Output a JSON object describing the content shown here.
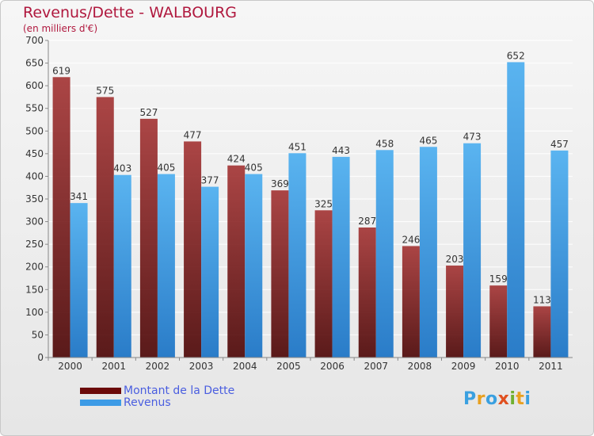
{
  "title": "Revenus/Dette - WALBOURG",
  "subtitle": "(en milliers d'€)",
  "colors": {
    "title": "#b0183e",
    "dette": "#8b1a1a",
    "revenus": "#3d9be6",
    "legend_text": "#4a5ee0"
  },
  "legend": [
    {
      "label": "Montant de la Dette",
      "color": "#6b0a0a"
    },
    {
      "label": "Revenus",
      "color": "#3d9be6"
    }
  ],
  "logo": {
    "letters": [
      "P",
      "r",
      "o",
      "x",
      "i",
      "t",
      "i"
    ],
    "colors": [
      "#3aa0e0",
      "#e8a020",
      "#3aa0e0",
      "#e05020",
      "#70b030",
      "#e8a020",
      "#3aa0e0"
    ]
  },
  "chart_data": {
    "type": "bar",
    "categories": [
      "2000",
      "2001",
      "2002",
      "2003",
      "2004",
      "2005",
      "2006",
      "2007",
      "2008",
      "2009",
      "2010",
      "2011"
    ],
    "series": [
      {
        "name": "Montant de la Dette",
        "values": [
          619,
          575,
          527,
          477,
          424,
          369,
          325,
          287,
          246,
          203,
          159,
          113
        ]
      },
      {
        "name": "Revenus",
        "values": [
          341,
          403,
          405,
          377,
          405,
          451,
          443,
          458,
          465,
          473,
          652,
          457
        ]
      }
    ],
    "yticks": [
      0,
      50,
      100,
      150,
      200,
      250,
      300,
      350,
      400,
      450,
      500,
      550,
      600,
      650,
      700
    ],
    "ylim": [
      0,
      700
    ],
    "grid": true,
    "legend_position": "bottom-left"
  }
}
